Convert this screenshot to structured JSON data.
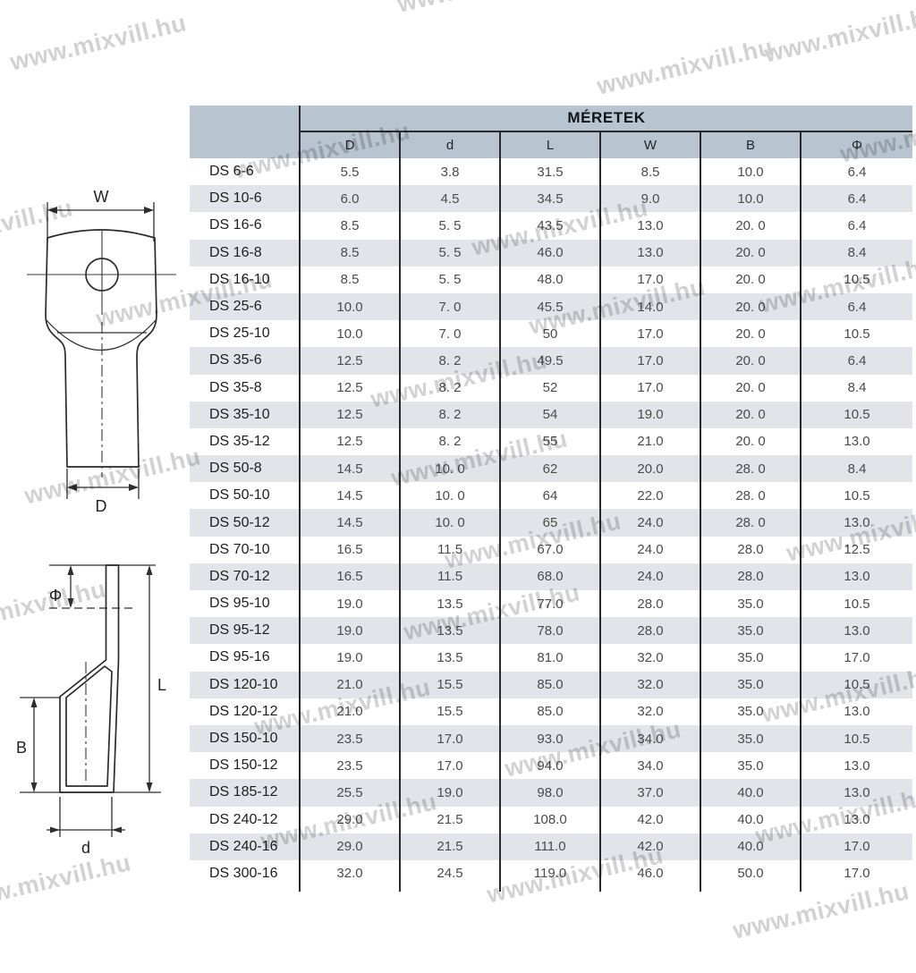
{
  "watermark": {
    "text": "www.mixvill.hu",
    "color": "#d2d2d2",
    "rotation_deg": -13,
    "instances": [
      [
        445,
        -10
      ],
      [
        12,
        55
      ],
      [
        855,
        46
      ],
      [
        668,
        82
      ],
      [
        940,
        158
      ],
      [
        262,
        176
      ],
      [
        -115,
        262
      ],
      [
        528,
        262
      ],
      [
        850,
        326
      ],
      [
        592,
        350
      ],
      [
        108,
        342
      ],
      [
        415,
        432
      ],
      [
        438,
        520
      ],
      [
        28,
        540
      ],
      [
        880,
        604
      ],
      [
        498,
        612
      ],
      [
        -78,
        688
      ],
      [
        452,
        692
      ],
      [
        852,
        784
      ],
      [
        285,
        798
      ],
      [
        565,
        845
      ],
      [
        845,
        920
      ],
      [
        292,
        926
      ],
      [
        545,
        986
      ],
      [
        -50,
        994
      ],
      [
        820,
        1026
      ]
    ]
  },
  "diagram_front": {
    "label_w": "W",
    "label_d": "D"
  },
  "diagram_side": {
    "label_phi": "Φ",
    "label_l": "L",
    "label_b": "B",
    "label_d": "d"
  },
  "table": {
    "title": "MÉRETEK",
    "columns": [
      "D",
      "d",
      "L",
      "W",
      "B",
      "Φ"
    ],
    "rows": [
      {
        "label": "DS 6-6",
        "values": [
          "5.5",
          "3.8",
          "31.5",
          "8.5",
          "10.0",
          "6.4"
        ]
      },
      {
        "label": "DS 10-6",
        "values": [
          "6.0",
          "4.5",
          "34.5",
          "9.0",
          "10.0",
          "6.4"
        ]
      },
      {
        "label": "DS 16-6",
        "values": [
          "8.5",
          "5. 5",
          "43.5",
          "13.0",
          "20. 0",
          "6.4"
        ]
      },
      {
        "label": "DS 16-8",
        "values": [
          "8.5",
          "5. 5",
          "46.0",
          "13.0",
          "20. 0",
          "8.4"
        ]
      },
      {
        "label": "DS 16-10",
        "values": [
          "8.5",
          "5. 5",
          "48.0",
          "17.0",
          "20. 0",
          "10.5"
        ]
      },
      {
        "label": "DS 25-6",
        "values": [
          "10.0",
          "7. 0",
          "45.5",
          "14.0",
          "20. 0",
          "6.4"
        ]
      },
      {
        "label": "DS 25-10",
        "values": [
          "10.0",
          "7. 0",
          "50",
          "17.0",
          "20. 0",
          "10.5"
        ]
      },
      {
        "label": "DS 35-6",
        "values": [
          "12.5",
          "8. 2",
          "49.5",
          "17.0",
          "20. 0",
          "6.4"
        ]
      },
      {
        "label": "DS 35-8",
        "values": [
          "12.5",
          "8. 2",
          "52",
          "17.0",
          "20. 0",
          "8.4"
        ]
      },
      {
        "label": "DS 35-10",
        "values": [
          "12.5",
          "8. 2",
          "54",
          "19.0",
          "20. 0",
          "10.5"
        ]
      },
      {
        "label": "DS 35-12",
        "values": [
          "12.5",
          "8. 2",
          "55",
          "21.0",
          "20. 0",
          "13.0"
        ]
      },
      {
        "label": "DS 50-8",
        "values": [
          "14.5",
          "10. 0",
          "62",
          "20.0",
          "28. 0",
          "8.4"
        ]
      },
      {
        "label": "DS 50-10",
        "values": [
          "14.5",
          "10. 0",
          "64",
          "22.0",
          "28. 0",
          "10.5"
        ]
      },
      {
        "label": "DS 50-12",
        "values": [
          "14.5",
          "10. 0",
          "65",
          "24.0",
          "28. 0",
          "13.0"
        ]
      },
      {
        "label": "DS 70-10",
        "values": [
          "16.5",
          "11.5",
          "67.0",
          "24.0",
          "28.0",
          "12.5"
        ]
      },
      {
        "label": "DS 70-12",
        "values": [
          "16.5",
          "11.5",
          "68.0",
          "24.0",
          "28.0",
          "13.0"
        ]
      },
      {
        "label": "DS 95-10",
        "values": [
          "19.0",
          "13.5",
          "77.0",
          "28.0",
          "35.0",
          "10.5"
        ]
      },
      {
        "label": "DS 95-12",
        "values": [
          "19.0",
          "13.5",
          "78.0",
          "28.0",
          "35.0",
          "13.0"
        ]
      },
      {
        "label": "DS 95-16",
        "values": [
          "19.0",
          "13.5",
          "81.0",
          "32.0",
          "35.0",
          "17.0"
        ]
      },
      {
        "label": "DS 120-10",
        "values": [
          "21.0",
          "15.5",
          "85.0",
          "32.0",
          "35.0",
          "10.5"
        ]
      },
      {
        "label": "DS 120-12",
        "values": [
          "21.0",
          "15.5",
          "85.0",
          "32.0",
          "35.0",
          "13.0"
        ]
      },
      {
        "label": "DS 150-10",
        "values": [
          "23.5",
          "17.0",
          "93.0",
          "34.0",
          "35.0",
          "10.5"
        ]
      },
      {
        "label": "DS 150-12",
        "values": [
          "23.5",
          "17.0",
          "94.0",
          "34.0",
          "35.0",
          "13.0"
        ]
      },
      {
        "label": "DS 185-12",
        "values": [
          "25.5",
          "19.0",
          "98.0",
          "37.0",
          "40.0",
          "13.0"
        ]
      },
      {
        "label": "DS 240-12",
        "values": [
          "29.0",
          "21.5",
          "108.0",
          "42.0",
          "40.0",
          "13.0"
        ]
      },
      {
        "label": "DS 240-16",
        "values": [
          "29.0",
          "21.5",
          "111.0",
          "42.0",
          "40.0",
          "17.0"
        ]
      },
      {
        "label": "DS 300-16",
        "values": [
          "32.0",
          "24.5",
          "119.0",
          "46.0",
          "50.0",
          "17.0"
        ]
      }
    ],
    "colors": {
      "header_bg": "#b8c4cf",
      "stripe_bg": "#e2e4e9",
      "grid_line": "#2a2a2a",
      "label_text": "#1e1e1e",
      "value_text": "#4b4b4b"
    }
  }
}
